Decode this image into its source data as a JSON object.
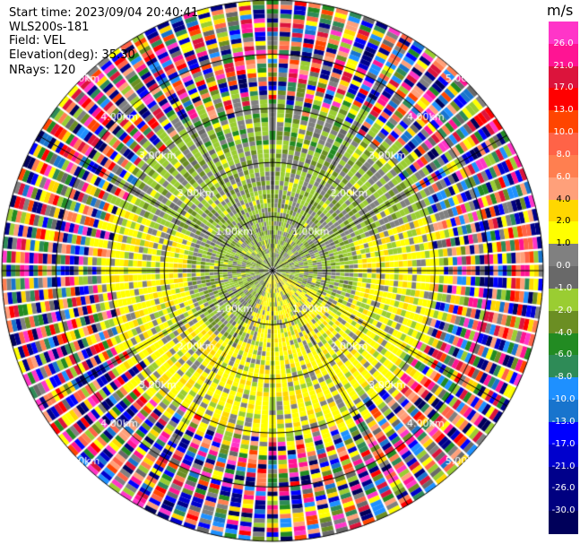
{
  "header": {
    "start_time": "Start time: 2023/09/04 20:40:41",
    "instrument": "WLS200s-181",
    "field": "Field: VEL",
    "elevation": "Elevation(deg): 35.30",
    "nrays": "NRays: 120"
  },
  "chart_data": {
    "type": "heatmap",
    "projection": "polar-ppi",
    "field": "VEL",
    "unit": "m/s",
    "n_rays": 120,
    "range_rings_km": [
      1.0,
      2.0,
      3.0,
      4.0,
      5.0
    ],
    "range_ring_labels": [
      "1.00km",
      "2.00km",
      "3.00km",
      "4.00km",
      "5.00km"
    ],
    "max_range_km": 5.0,
    "grid": true,
    "colorbar": {
      "ticks": [
        "26.0",
        "21.0",
        "17.0",
        "13.0",
        "10.0",
        "8.0",
        "6.0",
        "4.0",
        "2.0",
        "1.0",
        "0.0",
        "-1.0",
        "-2.0",
        "-4.0",
        "-6.0",
        "-8.0",
        "-10.0",
        "-13.0",
        "-17.0",
        "-21.0",
        "-26.0",
        "-30.0"
      ],
      "colors": [
        "#ff35c8",
        "#ff1493",
        "#dc143c",
        "#ff0000",
        "#ff4500",
        "#ff6347",
        "#ff7f50",
        "#ffa07a",
        "#ffd700",
        "#ffff00",
        "#808080",
        "#696969",
        "#9acd32",
        "#6b8e23",
        "#228b22",
        "#2e8b57",
        "#1e90ff",
        "#1874cd",
        "#0000ff",
        "#0000cd",
        "#00008b",
        "#000080",
        "#00005a"
      ],
      "dark_text": [
        "4.0",
        "2.0",
        "1.0"
      ]
    }
  }
}
